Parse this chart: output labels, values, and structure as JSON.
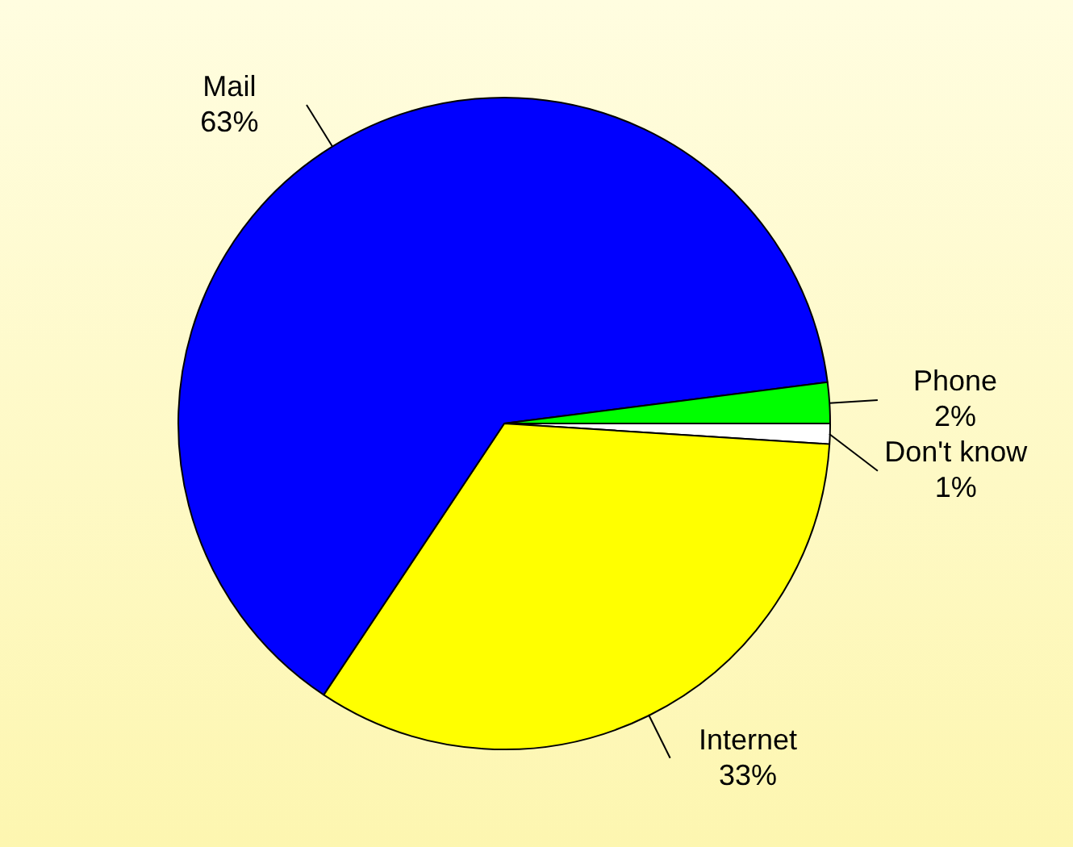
{
  "chart_data": {
    "type": "pie",
    "categories": [
      "Don't know",
      "Internet",
      "Mail",
      "Phone"
    ],
    "values": [
      1,
      33,
      63,
      2
    ],
    "colors": [
      "#ffffff",
      "#ffff00",
      "#0000ff",
      "#00ff00"
    ],
    "value_labels": [
      "1%",
      "33%",
      "63%",
      "2%"
    ],
    "legend": false
  }
}
